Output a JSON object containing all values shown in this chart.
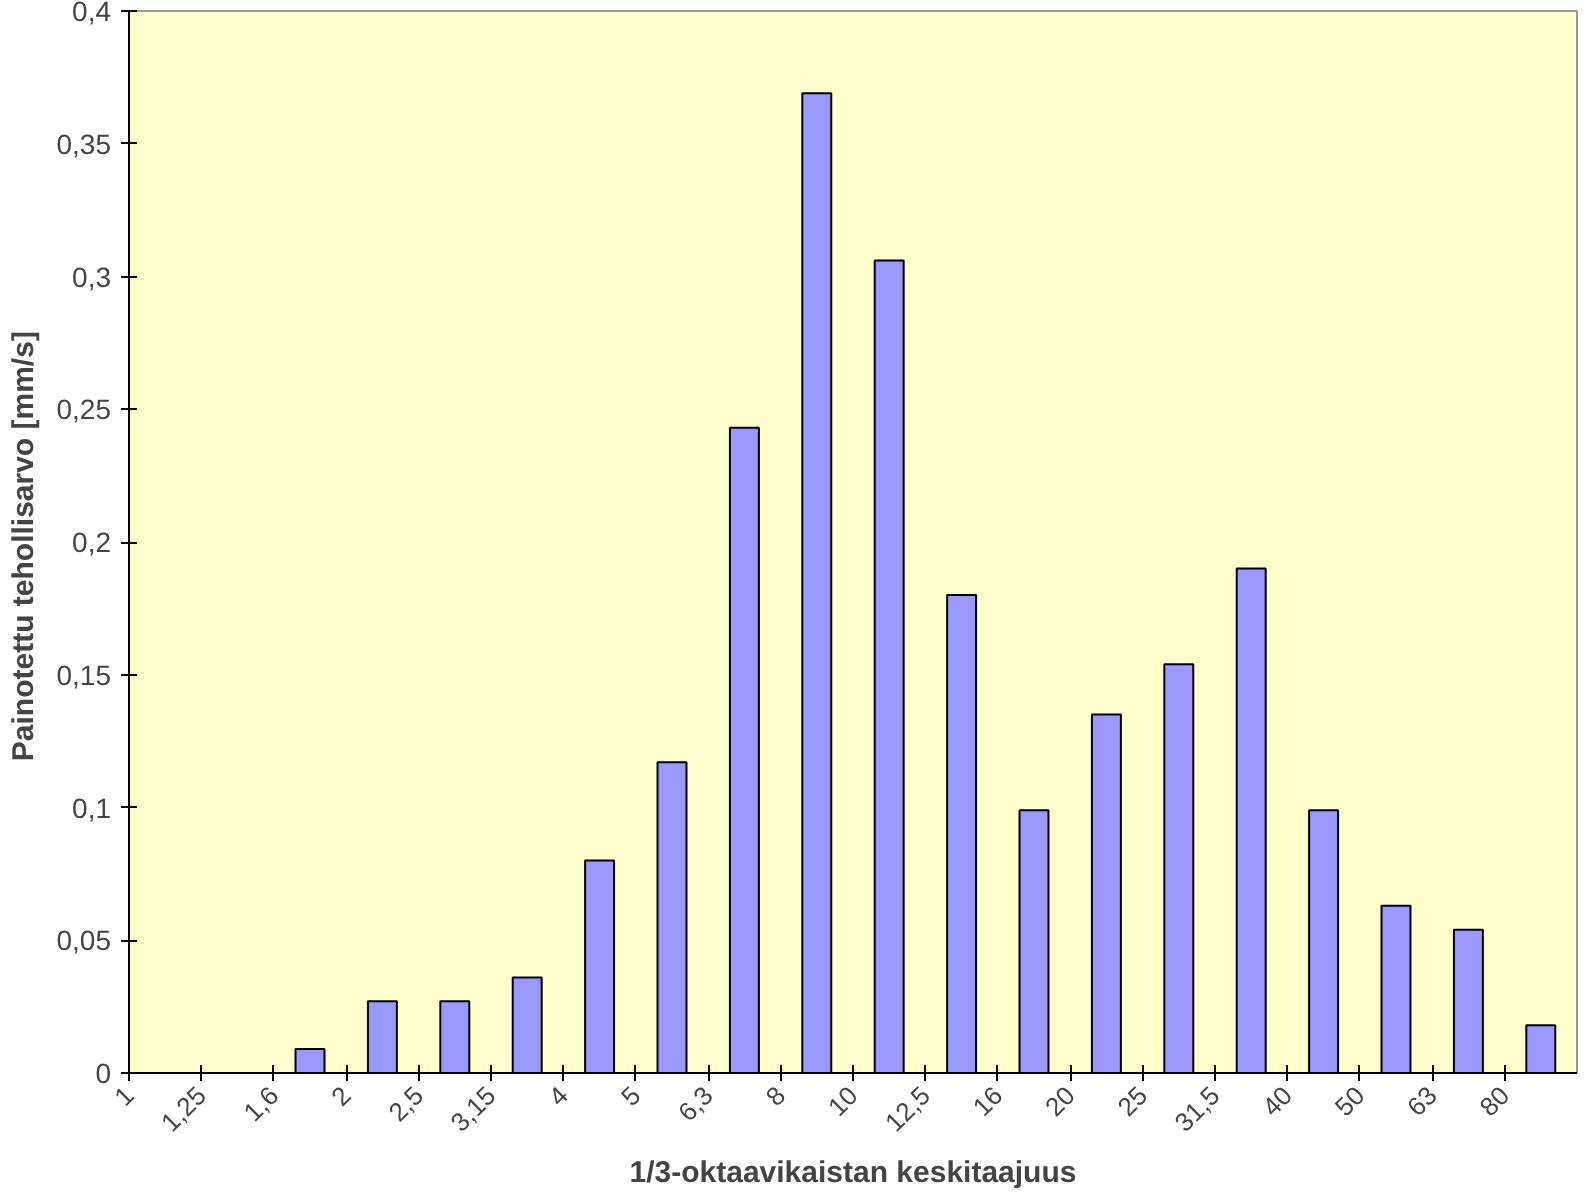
{
  "chart_data": {
    "type": "bar",
    "xlabel": "1/3-oktaavikaistan keskitaajuus",
    "ylabel": "Painotettu tehollisarvo  [mm/s]",
    "categories": [
      "1",
      "1,25",
      "1,6",
      "2",
      "2,5",
      "3,15",
      "4",
      "5",
      "6,3",
      "8",
      "10",
      "12,5",
      "16",
      "20",
      "25",
      "31,5",
      "40",
      "50",
      "63",
      "80"
    ],
    "values": [
      0,
      0,
      0.009,
      0.027,
      0.027,
      0.036,
      0.08,
      0.117,
      0.243,
      0.369,
      0.306,
      0.18,
      0.099,
      0.135,
      0.154,
      0.19,
      0.099,
      0.063,
      0.054,
      0.018
    ],
    "color": "#9999ff",
    "ylim": [
      0,
      0.4
    ],
    "yticks": [
      0,
      {
        "value": 0.05,
        "label": "0,05"
      },
      {
        "value": 0.1,
        "label": "0,1"
      },
      {
        "value": 0.15,
        "label": "0,15"
      },
      {
        "value": 0.2,
        "label": "0,2"
      },
      {
        "value": 0.25,
        "label": "0,25"
      },
      {
        "value": 0.3,
        "label": "0,3"
      },
      {
        "value": 0.35,
        "label": "0,35"
      },
      {
        "value": 0.4,
        "label": "0,4"
      }
    ],
    "grid": false
  }
}
